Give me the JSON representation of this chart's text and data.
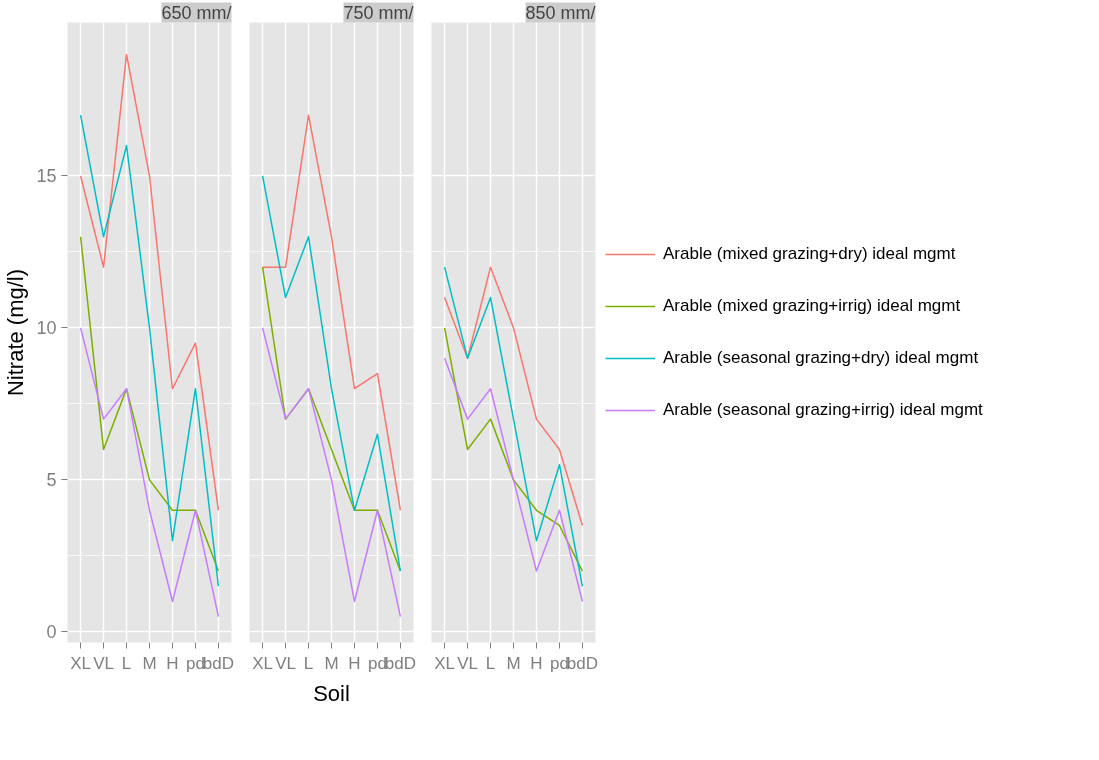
{
  "chart_data": [
    {
      "type": "line",
      "title": "650 mm/",
      "ylabel": "Nitrate (mg/l)",
      "categories": [
        "XL",
        "VL",
        "L",
        "M",
        "H",
        "pd",
        "bdD"
      ],
      "ylim": [
        -0.35,
        20.05
      ],
      "yticks": [
        0,
        5,
        10,
        15
      ],
      "grid": true,
      "series": [
        {
          "color": "#F8766D",
          "values": [
            15,
            12,
            19,
            15,
            8,
            9.5,
            4
          ]
        },
        {
          "color": "#7CAE00",
          "values": [
            13,
            6,
            8,
            5,
            4,
            4,
            2
          ]
        },
        {
          "color": "#00BFC4",
          "values": [
            17,
            13,
            16,
            10,
            3,
            8,
            1.5
          ]
        },
        {
          "color": "#C77CFF",
          "values": [
            10,
            7,
            8,
            4,
            1,
            4,
            0.5
          ]
        }
      ]
    },
    {
      "type": "line",
      "title": "750 mm/",
      "xlabel": "Soil",
      "categories": [
        "XL",
        "VL",
        "L",
        "M",
        "H",
        "pd",
        "bdD"
      ],
      "ylim": [
        -0.35,
        20.05
      ],
      "yticks": [
        0,
        5,
        10,
        15
      ],
      "grid": true,
      "tick_labels": "x",
      "series": [
        {
          "color": "#F8766D",
          "values": [
            12,
            12,
            17,
            13,
            8,
            8.5,
            4
          ]
        },
        {
          "color": "#7CAE00",
          "values": [
            12,
            7,
            8,
            6,
            4,
            4,
            2
          ]
        },
        {
          "color": "#00BFC4",
          "values": [
            15,
            11,
            13,
            8,
            4,
            6.5,
            2
          ]
        },
        {
          "color": "#C77CFF",
          "values": [
            10,
            7,
            8,
            5,
            1,
            4,
            0.5
          ]
        }
      ]
    },
    {
      "type": "line",
      "title": "850 mm/",
      "categories": [
        "XL",
        "VL",
        "L",
        "M",
        "H",
        "pd",
        "bdD"
      ],
      "ylim": [
        -0.35,
        20.05
      ],
      "yticks": [
        0,
        5,
        10,
        15
      ],
      "grid": true,
      "tick_labels": "x",
      "legend": "right",
      "series": [
        {
          "name": "Arable (mixed grazing+dry) ideal mgmt",
          "color": "#F8766D",
          "values": [
            11,
            9,
            12,
            10,
            7,
            6,
            3.5
          ]
        },
        {
          "name": "Arable (mixed grazing+irrig) ideal mgmt",
          "color": "#7CAE00",
          "values": [
            10,
            6,
            7,
            5,
            4,
            3.5,
            2
          ]
        },
        {
          "name": "Arable (seasonal grazing+dry) ideal mgmt",
          "color": "#00BFC4",
          "values": [
            12,
            9,
            11,
            7,
            3,
            5.5,
            1.5
          ]
        },
        {
          "name": "Arable (seasonal grazing+irrig) ideal mgmt",
          "color": "#C77CFF",
          "values": [
            9,
            7,
            8,
            5,
            2,
            4,
            1
          ]
        }
      ]
    }
  ]
}
